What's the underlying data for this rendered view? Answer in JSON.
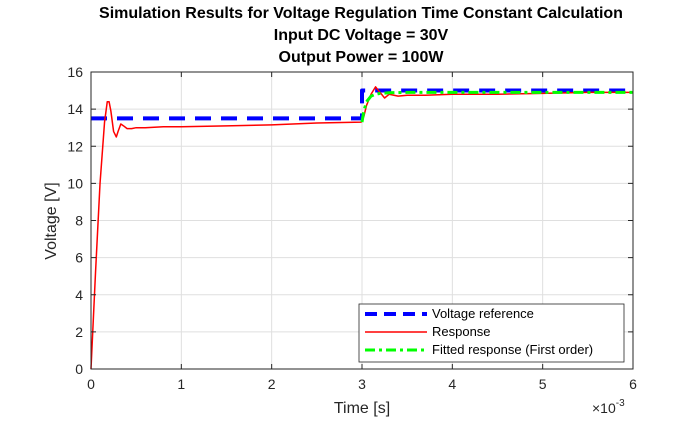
{
  "chart_data": {
    "type": "line",
    "title_lines": [
      "Simulation Results for Voltage Regulation Time Constant Calculation",
      "Input DC Voltage = 30V",
      "Output Power = 100W"
    ],
    "xlabel": "Time [s]",
    "ylabel": "Voltage [V]",
    "x_exponent_label": "×10",
    "x_exponent_power": "-3",
    "xlim": [
      0,
      0.006
    ],
    "ylim": [
      0,
      16
    ],
    "x_ticks": [
      0,
      0.001,
      0.002,
      0.003,
      0.004,
      0.005,
      0.006
    ],
    "x_tick_labels": [
      "0",
      "1",
      "2",
      "3",
      "4",
      "5",
      "6"
    ],
    "y_ticks": [
      0,
      2,
      4,
      6,
      8,
      10,
      12,
      14,
      16
    ],
    "y_tick_labels": [
      "0",
      "2",
      "4",
      "6",
      "8",
      "10",
      "12",
      "14",
      "16"
    ],
    "grid": true,
    "legend_position": "bottom-right",
    "series": [
      {
        "name": "Voltage reference",
        "color": "#0000ff",
        "style": "dashed",
        "x": [
          0,
          0.003,
          0.003,
          0.006
        ],
        "y": [
          13.5,
          13.5,
          15.0,
          15.0
        ]
      },
      {
        "name": "Response",
        "color": "#ff0000",
        "style": "solid",
        "x": [
          0,
          5e-05,
          0.0001,
          0.00015,
          0.00018,
          0.0002,
          0.00022,
          0.00025,
          0.00028,
          0.0003,
          0.00033,
          0.00036,
          0.0004,
          0.00045,
          0.0005,
          0.0006,
          0.0008,
          0.001,
          0.0015,
          0.002,
          0.0025,
          0.00299,
          0.00302,
          0.00305,
          0.0031,
          0.00315,
          0.0032,
          0.00325,
          0.0033,
          0.0034,
          0.0035,
          0.0037,
          0.004,
          0.0045,
          0.005,
          0.0055,
          0.006
        ],
        "y": [
          0,
          5.2,
          10.0,
          13.3,
          14.4,
          14.4,
          13.9,
          12.8,
          12.5,
          12.8,
          13.2,
          13.1,
          12.95,
          12.95,
          13.0,
          13.0,
          13.05,
          13.05,
          13.1,
          13.15,
          13.25,
          13.3,
          13.6,
          14.2,
          14.8,
          15.2,
          14.9,
          14.6,
          14.8,
          14.7,
          14.75,
          14.75,
          14.8,
          14.8,
          14.85,
          14.9,
          14.9
        ]
      },
      {
        "name": "Fitted response (First order)",
        "color": "#00ff00",
        "style": "dashdot",
        "x": [
          0.003,
          0.00302,
          0.00305,
          0.0031,
          0.00315,
          0.0032,
          0.0033,
          0.0035,
          0.004,
          0.0045,
          0.005,
          0.0055,
          0.006
        ],
        "y": [
          13.3,
          13.9,
          14.4,
          14.7,
          14.8,
          14.85,
          14.88,
          14.9,
          14.9,
          14.9,
          14.9,
          14.9,
          14.9
        ]
      }
    ]
  }
}
